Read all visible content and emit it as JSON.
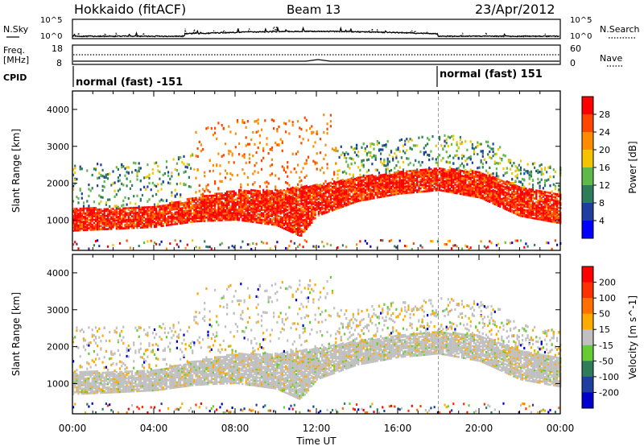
{
  "header": {
    "title": "Hokkaido (fitACF)",
    "beam": "Beam 13",
    "date": "23/Apr/2012"
  },
  "strip_labels": {
    "nsky": "N.Sky",
    "nsearch": "N.Search",
    "freq": "Freq.",
    "mhz": "[MHz]",
    "nave": "Nave",
    "cpid": "CPID"
  },
  "strip_ticks": {
    "noise_left": [
      "10^5",
      "10^0"
    ],
    "noise_right": [
      "10^5",
      "10^0"
    ],
    "freq_left": [
      "18",
      "8"
    ],
    "nave_right": [
      "60",
      "0"
    ]
  },
  "cpid_modes": [
    {
      "label": "normal (fast) -151",
      "start_hour": 0
    },
    {
      "label": "normal (fast) 151",
      "start_hour": 18
    }
  ],
  "colors": {
    "power_scale": [
      "#0000ff",
      "#1f3fa0",
      "#2e7d5a",
      "#5fb84a",
      "#f5c400",
      "#ff8c00",
      "#ff4500",
      "#ff0000"
    ],
    "velocity_scale": [
      "#0000cc",
      "#1f3fa0",
      "#2e7d5a",
      "#66cc33",
      "#c0c0c0",
      "#ffaa00",
      "#ff7000",
      "#ff3000",
      "#ff0000"
    ],
    "velocity_grey": "#c0c0c0"
  },
  "chart_data": [
    {
      "type": "heatmap",
      "panel": "power",
      "ylabel": "Slant Range [km]",
      "xlabel": "Time UT",
      "x_ticks": [
        "00:00",
        "04:00",
        "08:00",
        "12:00",
        "16:00",
        "20:00",
        "00:00"
      ],
      "x_range_hours": [
        0,
        24
      ],
      "ylim": [
        180,
        4500
      ],
      "y_ticks": [
        1000,
        2000,
        3000,
        4000
      ],
      "colorbar": {
        "label": "Power [dB]",
        "ticks": [
          4,
          8,
          12,
          16,
          20,
          24,
          28
        ]
      },
      "dominant_band": [
        {
          "hour": 0,
          "lower_km": 700,
          "upper_km": 1300
        },
        {
          "hour": 4,
          "lower_km": 800,
          "upper_km": 1350
        },
        {
          "hour": 6,
          "lower_km": 950,
          "upper_km": 1600
        },
        {
          "hour": 8,
          "lower_km": 1000,
          "upper_km": 1800
        },
        {
          "hour": 10,
          "lower_km": 850,
          "upper_km": 1800
        },
        {
          "hour": 11.2,
          "lower_km": 550,
          "upper_km": 1900
        },
        {
          "hour": 12,
          "lower_km": 1100,
          "upper_km": 1950
        },
        {
          "hour": 14,
          "lower_km": 1500,
          "upper_km": 2150
        },
        {
          "hour": 16,
          "lower_km": 1700,
          "upper_km": 2300
        },
        {
          "hour": 18,
          "lower_km": 1800,
          "upper_km": 2400
        },
        {
          "hour": 20,
          "lower_km": 1600,
          "upper_km": 2300
        },
        {
          "hour": 22,
          "lower_km": 1100,
          "upper_km": 1900
        },
        {
          "hour": 24,
          "lower_km": 900,
          "upper_km": 1700
        }
      ]
    },
    {
      "type": "heatmap",
      "panel": "velocity",
      "ylabel": "Slant Range [km]",
      "xlabel": "Time UT",
      "x_ticks": [
        "00:00",
        "04:00",
        "08:00",
        "12:00",
        "16:00",
        "20:00",
        "00:00"
      ],
      "x_range_hours": [
        0,
        24
      ],
      "ylim": [
        180,
        4500
      ],
      "y_ticks": [
        1000,
        2000,
        3000,
        4000
      ],
      "colorbar": {
        "label": "Velocity [m s^-1]",
        "ticks": [
          200,
          100,
          50,
          15,
          -15,
          -50,
          -100,
          -200
        ]
      }
    }
  ]
}
